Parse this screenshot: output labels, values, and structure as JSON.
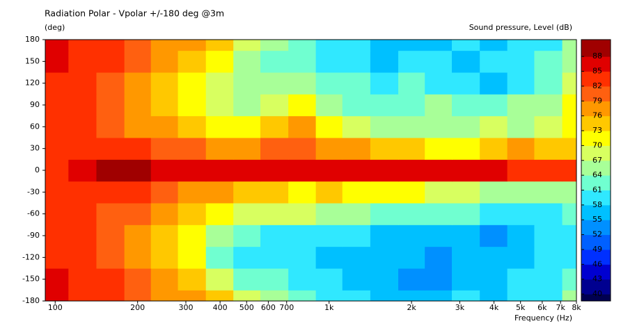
{
  "chart_data": {
    "type": "heatmap",
    "title": "Radiation Polar - Vpolar +/-180 deg @3m",
    "y_label": "(deg)",
    "colorbar_label": "Sound pressure, Level  (dB)",
    "x_label": "Frequency  (Hz)",
    "log_x": true,
    "x": [
      100,
      125,
      160,
      200,
      250,
      315,
      400,
      500,
      630,
      800,
      1000,
      1250,
      1600,
      2000,
      2500,
      3150,
      4000,
      5000,
      6300,
      8000
    ],
    "y": [
      -180,
      -150,
      -120,
      -90,
      -60,
      -30,
      0,
      30,
      60,
      90,
      120,
      150,
      180
    ],
    "z": [
      [
        85,
        84,
        82,
        80,
        78,
        76,
        73,
        68,
        65,
        63,
        60,
        60,
        57,
        57,
        57,
        58,
        57,
        58,
        60,
        66
      ],
      [
        85,
        84,
        83,
        81,
        77,
        73,
        68,
        63,
        62,
        60,
        58,
        57,
        56,
        54,
        53,
        55,
        56,
        58,
        60,
        62
      ],
      [
        83,
        83,
        81,
        78,
        75,
        70,
        61,
        60,
        58,
        58,
        57,
        56,
        55,
        55,
        54,
        55,
        55,
        56,
        58,
        58
      ],
      [
        83,
        82,
        80,
        78,
        74,
        70,
        66,
        62,
        60,
        60,
        58,
        58,
        56,
        56,
        55,
        55,
        53,
        55,
        58,
        60
      ],
      [
        82,
        82,
        80,
        79,
        76,
        73,
        70,
        67,
        68,
        67,
        66,
        65,
        63,
        62,
        61,
        61,
        60,
        58,
        60,
        62
      ],
      [
        83,
        83,
        83,
        82,
        80,
        78,
        76,
        73,
        73,
        72,
        73,
        72,
        71,
        70,
        68,
        67,
        66,
        64,
        64,
        66
      ],
      [
        84,
        86,
        88,
        88,
        87,
        86,
        85,
        86,
        85,
        85,
        85,
        85,
        86,
        85,
        86,
        86,
        85,
        83,
        84,
        83
      ],
      [
        83,
        83,
        83,
        82,
        80,
        79,
        77,
        76,
        79,
        80,
        78,
        77,
        75,
        74,
        72,
        72,
        73,
        76,
        73,
        75
      ],
      [
        82,
        82,
        80,
        78,
        76,
        74,
        72,
        70,
        73,
        76,
        70,
        67,
        66,
        65,
        66,
        66,
        67,
        64,
        67,
        70
      ],
      [
        82,
        82,
        79,
        76,
        73,
        70,
        67,
        66,
        68,
        70,
        65,
        63,
        63,
        62,
        64,
        62,
        62,
        64,
        66,
        72
      ],
      [
        83,
        82,
        80,
        78,
        74,
        70,
        67,
        64,
        65,
        65,
        63,
        61,
        60,
        62,
        60,
        58,
        55,
        60,
        62,
        68
      ],
      [
        85,
        84,
        82,
        80,
        77,
        74,
        70,
        66,
        63,
        62,
        60,
        58,
        55,
        58,
        60,
        56,
        58,
        60,
        63,
        66
      ],
      [
        85,
        84,
        82,
        80,
        78,
        76,
        73,
        68,
        65,
        63,
        60,
        60,
        57,
        57,
        57,
        58,
        57,
        58,
        60,
        66
      ]
    ],
    "xlim": [
      92,
      8000
    ],
    "xticks": [
      100,
      200,
      300,
      400,
      500,
      600,
      700,
      {
        "value": 1000,
        "label": "1k"
      },
      {
        "value": 2000,
        "label": "2k"
      },
      {
        "value": 3000,
        "label": "3k"
      },
      {
        "value": 4000,
        "label": "4k"
      },
      {
        "value": 5000,
        "label": "5k"
      },
      {
        "value": 6000,
        "label": "6k"
      },
      {
        "value": 7000,
        "label": "7k"
      },
      {
        "value": 8000,
        "label": "8k"
      }
    ],
    "ylim": [
      -180,
      180
    ],
    "yticks": [
      -180,
      -150,
      -120,
      -90,
      -60,
      -30,
      0,
      30,
      60,
      90,
      120,
      150,
      180
    ],
    "zlim": [
      38.6,
      91.4
    ],
    "zticks": [
      40,
      43,
      46,
      49,
      52,
      55,
      58,
      61,
      64,
      67,
      70,
      73,
      76,
      79,
      82,
      85,
      88
    ],
    "colors": [
      "#000050",
      "#000090",
      "#0000d0",
      "#0030ff",
      "#0060ff",
      "#0090ff",
      "#00c0ff",
      "#30e8ff",
      "#70ffd0",
      "#a8ff98",
      "#d8ff60",
      "#ffff00",
      "#ffc800",
      "#ff9800",
      "#ff6010",
      "#ff3000",
      "#e00000",
      "#a00000"
    ]
  }
}
